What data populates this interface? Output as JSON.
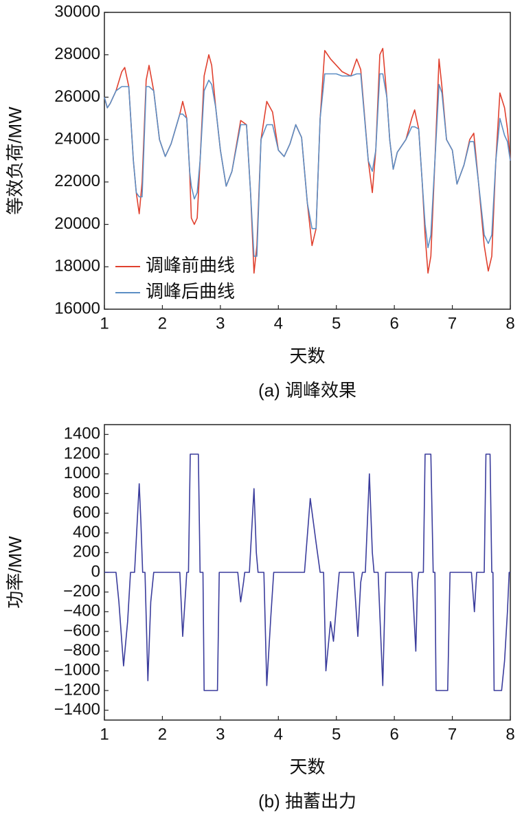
{
  "chart_data": [
    {
      "type": "line",
      "caption": "(a) 调峰效果",
      "xlabel": "天数",
      "ylabel": "等效负荷/MW",
      "xlim": [
        1,
        8
      ],
      "xticks": [
        1,
        2,
        3,
        4,
        5,
        6,
        7,
        8
      ],
      "ylim": [
        16000,
        30000
      ],
      "yticks": [
        16000,
        18000,
        20000,
        22000,
        24000,
        26000,
        28000,
        30000
      ],
      "grid": false,
      "legend": "lower left",
      "x": [
        1.0,
        1.05,
        1.1,
        1.2,
        1.3,
        1.35,
        1.42,
        1.5,
        1.55,
        1.6,
        1.65,
        1.72,
        1.77,
        1.85,
        1.95,
        2.05,
        2.15,
        2.3,
        2.35,
        2.42,
        2.47,
        2.5,
        2.55,
        2.6,
        2.65,
        2.72,
        2.8,
        2.85,
        2.92,
        3.0,
        3.1,
        3.2,
        3.35,
        3.45,
        3.52,
        3.58,
        3.63,
        3.7,
        3.8,
        3.9,
        4.0,
        4.1,
        4.2,
        4.3,
        4.4,
        4.5,
        4.58,
        4.65,
        4.72,
        4.8,
        4.9,
        5.0,
        5.1,
        5.25,
        5.35,
        5.42,
        5.55,
        5.62,
        5.68,
        5.75,
        5.8,
        5.87,
        5.92,
        5.98,
        6.05,
        6.2,
        6.3,
        6.35,
        6.42,
        6.48,
        6.53,
        6.58,
        6.63,
        6.7,
        6.77,
        6.82,
        6.9,
        7.0,
        7.08,
        7.2,
        7.3,
        7.37,
        7.45,
        7.55,
        7.62,
        7.68,
        7.75,
        7.82,
        7.9,
        7.95,
        8.0
      ],
      "series": [
        {
          "name": "调峰前曲线",
          "color": "#e0402e",
          "values": [
            26000,
            25500,
            25700,
            26300,
            27200,
            27400,
            26500,
            23000,
            21500,
            20500,
            22000,
            26800,
            27500,
            26300,
            24000,
            23200,
            23800,
            25200,
            25800,
            25000,
            22500,
            20300,
            20000,
            20300,
            23000,
            27000,
            28000,
            27500,
            25500,
            23500,
            21800,
            22500,
            24900,
            24700,
            21500,
            17700,
            19000,
            24000,
            25800,
            25300,
            23500,
            23200,
            23800,
            24700,
            24100,
            21000,
            19000,
            19800,
            25000,
            28200,
            27800,
            27500,
            27200,
            27000,
            27800,
            27300,
            23000,
            21500,
            23500,
            28000,
            28300,
            26000,
            24000,
            22600,
            23400,
            24000,
            25000,
            25400,
            24500,
            22000,
            19500,
            17700,
            18500,
            23000,
            27800,
            26500,
            24000,
            23500,
            21900,
            22800,
            24000,
            24300,
            22000,
            19000,
            17800,
            18500,
            23000,
            26200,
            25500,
            24500,
            23000
          ]
        },
        {
          "name": "调峰后曲线",
          "color": "#5b8ec4",
          "values": [
            26000,
            25500,
            25700,
            26300,
            26500,
            26500,
            26500,
            23000,
            21500,
            21300,
            21300,
            26500,
            26500,
            26300,
            24000,
            23200,
            23800,
            25200,
            25200,
            25000,
            22500,
            21800,
            21200,
            21500,
            23000,
            26300,
            26800,
            26600,
            25500,
            23500,
            21800,
            22500,
            24700,
            24700,
            21500,
            18500,
            18500,
            24000,
            24700,
            24700,
            23500,
            23200,
            23800,
            24700,
            24100,
            21000,
            19800,
            19800,
            25000,
            27100,
            27100,
            27100,
            27000,
            27000,
            27100,
            27100,
            23000,
            22500,
            23500,
            27100,
            27100,
            26000,
            24000,
            22600,
            23400,
            24000,
            24600,
            24600,
            24500,
            22000,
            20000,
            18900,
            19500,
            23000,
            26600,
            26200,
            24000,
            23500,
            21900,
            22800,
            23900,
            23900,
            22000,
            19500,
            19100,
            19500,
            23000,
            25000,
            24200,
            23900,
            23000
          ]
        }
      ]
    },
    {
      "type": "line",
      "caption": "(b) 抽蓄出力",
      "xlabel": "天数",
      "ylabel": "功率/MW",
      "xlim": [
        1,
        8
      ],
      "xticks": [
        1,
        2,
        3,
        4,
        5,
        6,
        7,
        8
      ],
      "ylim": [
        -1500,
        1500
      ],
      "yticks": [
        1400,
        1200,
        1000,
        800,
        600,
        400,
        200,
        0,
        {
          "value": -200,
          "label": "−200"
        },
        {
          "value": -400,
          "label": "−400"
        },
        {
          "value": -600,
          "label": "−600"
        },
        {
          "value": -800,
          "label": "−800"
        },
        {
          "value": -1000,
          "label": "−1000"
        },
        {
          "value": -1200,
          "label": "−1200"
        },
        {
          "value": -1400,
          "label": "−1400"
        }
      ],
      "grid": false,
      "x": [
        1.0,
        1.2,
        1.25,
        1.33,
        1.4,
        1.45,
        1.52,
        1.6,
        1.63,
        1.66,
        1.7,
        1.75,
        1.8,
        1.85,
        2.3,
        2.35,
        2.4,
        2.42,
        2.45,
        2.48,
        2.62,
        2.65,
        2.7,
        2.72,
        2.95,
        2.98,
        3.3,
        3.35,
        3.4,
        3.42,
        3.5,
        3.58,
        3.62,
        3.65,
        3.75,
        3.8,
        3.87,
        3.92,
        4.45,
        4.55,
        4.65,
        4.72,
        4.78,
        4.82,
        4.9,
        4.95,
        5.02,
        5.05,
        5.3,
        5.37,
        5.42,
        5.45,
        5.5,
        5.57,
        5.62,
        5.65,
        5.72,
        5.8,
        5.85,
        6.3,
        6.37,
        6.4,
        6.42,
        6.5,
        6.53,
        6.63,
        6.67,
        6.7,
        6.72,
        6.92,
        6.96,
        7.33,
        7.38,
        7.42,
        7.55,
        7.58,
        7.65,
        7.68,
        7.7,
        7.72,
        7.85,
        7.9,
        7.95,
        7.98,
        8.0
      ],
      "series": [
        {
          "color": "#3a3c9c",
          "values": [
            0,
            0,
            -300,
            -950,
            -500,
            0,
            0,
            900,
            500,
            0,
            0,
            -1100,
            -300,
            0,
            0,
            -650,
            -200,
            0,
            0,
            1200,
            1200,
            0,
            0,
            -1200,
            -1200,
            0,
            0,
            -300,
            -100,
            0,
            0,
            850,
            200,
            0,
            0,
            -1150,
            -450,
            0,
            0,
            750,
            300,
            0,
            0,
            -1000,
            -500,
            -700,
            -200,
            0,
            0,
            -650,
            -100,
            0,
            0,
            1000,
            200,
            0,
            0,
            -1150,
            0,
            0,
            -800,
            -100,
            0,
            0,
            1200,
            1200,
            0,
            0,
            -1200,
            -1200,
            0,
            0,
            -400,
            0,
            0,
            1200,
            1200,
            0,
            0,
            -1200,
            -1200,
            -900,
            -400,
            0,
            0
          ]
        }
      ]
    }
  ]
}
